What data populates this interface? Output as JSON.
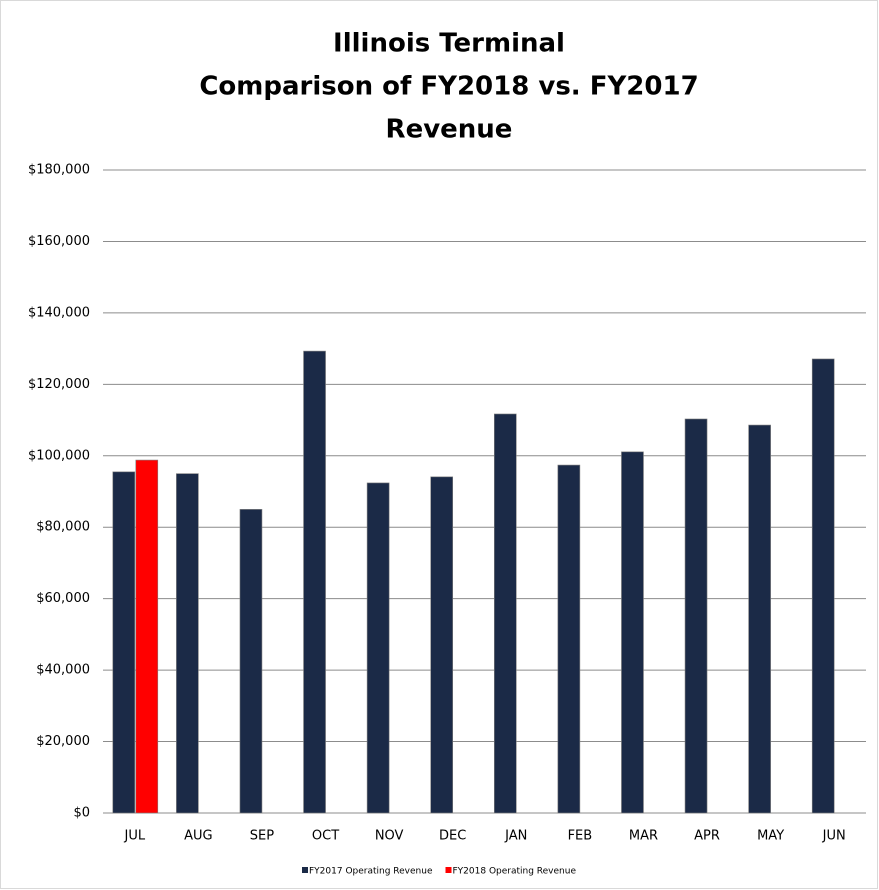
{
  "chart_data": {
    "type": "bar",
    "title": [
      "Illinois Terminal",
      "Comparison of FY2018 vs. FY2017",
      "Revenue"
    ],
    "categories": [
      "JUL",
      "AUG",
      "SEP",
      "OCT",
      "NOV",
      "DEC",
      "JAN",
      "FEB",
      "MAR",
      "APR",
      "MAY",
      "JUN"
    ],
    "series": [
      {
        "name": "FY2017 Operating Revenue",
        "color": "#1b2a47",
        "values": [
          95500,
          95000,
          85000,
          129300,
          92400,
          94100,
          111700,
          97400,
          101100,
          110300,
          108600,
          127100
        ]
      },
      {
        "name": "FY2018 Operating Revenue",
        "color": "#ff0000",
        "values": [
          98800,
          null,
          null,
          null,
          null,
          null,
          null,
          null,
          null,
          null,
          null,
          null
        ]
      }
    ],
    "ylim": [
      0,
      180000
    ],
    "yticks": [
      {
        "value": 0,
        "label": "$0"
      },
      {
        "value": 20000,
        "label": "$20,000"
      },
      {
        "value": 40000,
        "label": "$40,000"
      },
      {
        "value": 60000,
        "label": "$60,000"
      },
      {
        "value": 80000,
        "label": "$80,000"
      },
      {
        "value": 100000,
        "label": "$100,000"
      },
      {
        "value": 120000,
        "label": "$120,000"
      },
      {
        "value": 140000,
        "label": "$140,000"
      },
      {
        "value": 160000,
        "label": "$160,000"
      },
      {
        "value": 180000,
        "label": "$180,000"
      }
    ],
    "grid": true,
    "legend": "bottom"
  }
}
